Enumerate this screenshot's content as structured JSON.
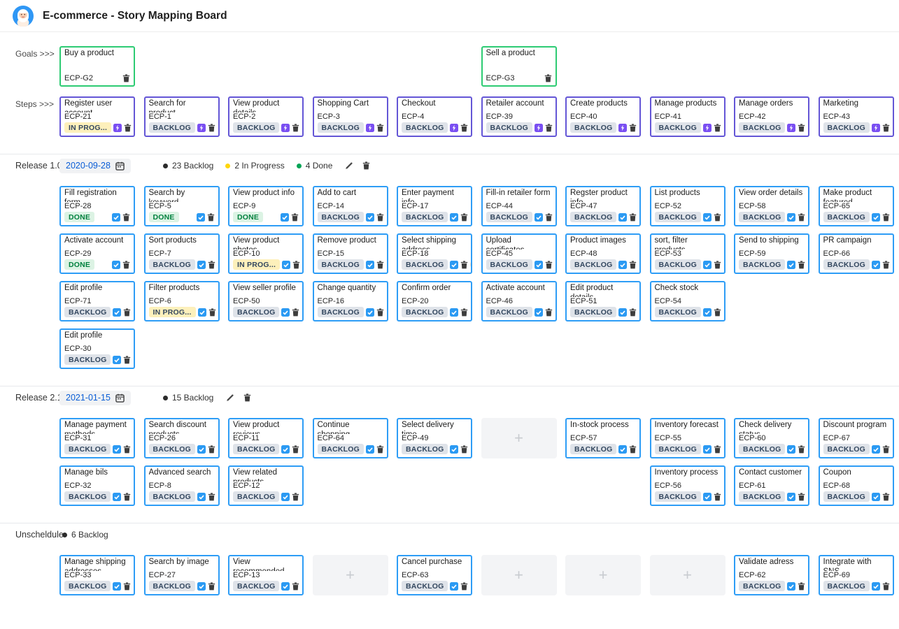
{
  "header": {
    "title": "E-commerce - Story Mapping Board"
  },
  "row_labels": {
    "goals": "Goals >>>",
    "steps": "Steps >>>"
  },
  "ui": {
    "placeholder_plus": "+"
  },
  "colors": {
    "goal_border": "#2dcb73",
    "step_border": "#6456d6",
    "story_border": "#2e9df6",
    "step_icon": "#7a4ff2",
    "story_icon": "#2b9af3",
    "badge_backlog_bg": "#dfe3e9",
    "badge_backlog_text": "#33475f",
    "badge_done_bg": "#dcf3e4",
    "badge_done_text": "#00813e",
    "badge_inprog_bg": "#fdf0bb",
    "badge_inprog_text": "#33475f",
    "dot_backlog": "#2b2b2b",
    "dot_inprog": "#ffd60a",
    "dot_done": "#00a455",
    "date_bg": "#f1f2f4",
    "date_text": "#0a5dd6"
  },
  "goals": [
    {
      "col": 0,
      "title": "Buy a product",
      "key": "ECP-G2"
    },
    {
      "col": 5,
      "title": "Sell a product",
      "key": "ECP-G3"
    }
  ],
  "steps": [
    {
      "col": 0,
      "title": "Register user account",
      "key": "ECP-21",
      "status": "inprog",
      "badge": "IN PROG...",
      "avatar": true
    },
    {
      "col": 1,
      "title": "Search for product",
      "key": "ECP-1",
      "status": "backlog",
      "badge": "BACKLOG"
    },
    {
      "col": 2,
      "title": "View product details",
      "key": "ECP-2",
      "status": "backlog",
      "badge": "BACKLOG"
    },
    {
      "col": 3,
      "title": "Shopping Cart",
      "key": "ECP-3",
      "status": "backlog",
      "badge": "BACKLOG"
    },
    {
      "col": 4,
      "title": "Checkout",
      "key": "ECP-4",
      "status": "backlog",
      "badge": "BACKLOG"
    },
    {
      "col": 5,
      "title": "Retailer account",
      "key": "ECP-39",
      "status": "backlog",
      "badge": "BACKLOG"
    },
    {
      "col": 6,
      "title": "Create products",
      "key": "ECP-40",
      "status": "backlog",
      "badge": "BACKLOG"
    },
    {
      "col": 7,
      "title": "Manage products",
      "key": "ECP-41",
      "status": "backlog",
      "badge": "BACKLOG"
    },
    {
      "col": 8,
      "title": "Manage orders",
      "key": "ECP-42",
      "status": "backlog",
      "badge": "BACKLOG"
    },
    {
      "col": 9,
      "title": "Marketing",
      "key": "ECP-43",
      "status": "backlog",
      "badge": "BACKLOG"
    }
  ],
  "sections": [
    {
      "label": "Release 1.0",
      "date": "2020-09-28",
      "editable": true,
      "counts": [
        {
          "status": "backlog",
          "label": "23 Backlog"
        },
        {
          "status": "inprog",
          "label": "2 In Progress"
        },
        {
          "status": "done",
          "label": "4 Done"
        }
      ],
      "rows": [
        [
          {
            "col": 0,
            "title": "Fill registration form",
            "key": "ECP-28",
            "status": "done",
            "badge": "DONE"
          },
          {
            "col": 1,
            "title": "Search by keyword",
            "key": "ECP-5",
            "status": "done",
            "badge": "DONE"
          },
          {
            "col": 2,
            "title": "View product info",
            "key": "ECP-9",
            "status": "done",
            "badge": "DONE"
          },
          {
            "col": 3,
            "title": "Add to cart",
            "key": "ECP-14",
            "status": "backlog",
            "badge": "BACKLOG"
          },
          {
            "col": 4,
            "title": "Enter payment info",
            "key": "ECP-17",
            "status": "backlog",
            "badge": "BACKLOG"
          },
          {
            "col": 5,
            "title": "Fill-in retailer form",
            "key": "ECP-44",
            "status": "backlog",
            "badge": "BACKLOG"
          },
          {
            "col": 6,
            "title": "Regster product info",
            "key": "ECP-47",
            "status": "backlog",
            "badge": "BACKLOG"
          },
          {
            "col": 7,
            "title": "List products",
            "key": "ECP-52",
            "status": "backlog",
            "badge": "BACKLOG"
          },
          {
            "col": 8,
            "title": "View order details",
            "key": "ECP-58",
            "status": "backlog",
            "badge": "BACKLOG"
          },
          {
            "col": 9,
            "title": "Make product featured",
            "key": "ECP-65",
            "status": "backlog",
            "badge": "BACKLOG"
          }
        ],
        [
          {
            "col": 0,
            "title": "Activate account",
            "key": "ECP-29",
            "status": "done",
            "badge": "DONE"
          },
          {
            "col": 1,
            "title": "Sort products",
            "key": "ECP-7",
            "status": "backlog",
            "badge": "BACKLOG"
          },
          {
            "col": 2,
            "title": "View product photos",
            "key": "ECP-10",
            "status": "inprog",
            "badge": "IN PROG..."
          },
          {
            "col": 3,
            "title": "Remove product",
            "key": "ECP-15",
            "status": "backlog",
            "badge": "BACKLOG"
          },
          {
            "col": 4,
            "title": "Select shipping address",
            "key": "ECP-18",
            "status": "backlog",
            "badge": "BACKLOG",
            "avatar": true
          },
          {
            "col": 5,
            "title": "Upload certificates",
            "key": "ECP-45",
            "status": "backlog",
            "badge": "BACKLOG"
          },
          {
            "col": 6,
            "title": "Product images",
            "key": "ECP-48",
            "status": "backlog",
            "badge": "BACKLOG"
          },
          {
            "col": 7,
            "title": "sort, filter products",
            "key": "ECP-53",
            "status": "backlog",
            "badge": "BACKLOG"
          },
          {
            "col": 8,
            "title": "Send to shipping",
            "key": "ECP-59",
            "status": "backlog",
            "badge": "BACKLOG"
          },
          {
            "col": 9,
            "title": "PR campaign",
            "key": "ECP-66",
            "status": "backlog",
            "badge": "BACKLOG"
          }
        ],
        [
          {
            "col": 0,
            "title": "Edit profile",
            "key": "ECP-71",
            "status": "backlog",
            "badge": "BACKLOG"
          },
          {
            "col": 1,
            "title": "Filter products",
            "key": "ECP-6",
            "status": "inprog",
            "badge": "IN PROG..."
          },
          {
            "col": 2,
            "title": "View seller profile",
            "key": "ECP-50",
            "status": "backlog",
            "badge": "BACKLOG"
          },
          {
            "col": 3,
            "title": "Change quantity",
            "key": "ECP-16",
            "status": "backlog",
            "badge": "BACKLOG"
          },
          {
            "col": 4,
            "title": "Confirm order",
            "key": "ECP-20",
            "status": "backlog",
            "badge": "BACKLOG"
          },
          {
            "col": 5,
            "title": "Activate account",
            "key": "ECP-46",
            "status": "backlog",
            "badge": "BACKLOG"
          },
          {
            "col": 6,
            "title": "Edit product details",
            "key": "ECP-51",
            "status": "backlog",
            "badge": "BACKLOG"
          },
          {
            "col": 7,
            "title": "Check stock",
            "key": "ECP-54",
            "status": "backlog",
            "badge": "BACKLOG"
          }
        ],
        [
          {
            "col": 0,
            "title": "Edit profile",
            "key": "ECP-30",
            "status": "backlog",
            "badge": "BACKLOG"
          }
        ]
      ]
    },
    {
      "label": "Release 2.1",
      "date": "2021-01-15",
      "editable": true,
      "counts": [
        {
          "status": "backlog",
          "label": "15 Backlog"
        }
      ],
      "rows": [
        [
          {
            "col": 0,
            "title": "Manage payment methods",
            "key": "ECP-31",
            "status": "backlog",
            "badge": "BACKLOG"
          },
          {
            "col": 1,
            "title": "Search discount products",
            "key": "ECP-26",
            "status": "backlog",
            "badge": "BACKLOG"
          },
          {
            "col": 2,
            "title": "View product reviews",
            "key": "ECP-11",
            "status": "backlog",
            "badge": "BACKLOG"
          },
          {
            "col": 3,
            "title": "Continue shopping",
            "key": "ECP-64",
            "status": "backlog",
            "badge": "BACKLOG"
          },
          {
            "col": 4,
            "title": "Select delivery time",
            "key": "ECP-49",
            "status": "backlog",
            "badge": "BACKLOG"
          },
          {
            "col": 5,
            "type": "placeholder"
          },
          {
            "col": 6,
            "title": "In-stock process",
            "key": "ECP-57",
            "status": "backlog",
            "badge": "BACKLOG"
          },
          {
            "col": 7,
            "title": "Inventory forecast",
            "key": "ECP-55",
            "status": "backlog",
            "badge": "BACKLOG"
          },
          {
            "col": 8,
            "title": "Check delivery status",
            "key": "ECP-60",
            "status": "backlog",
            "badge": "BACKLOG"
          },
          {
            "col": 9,
            "title": "Discount program",
            "key": "ECP-67",
            "status": "backlog",
            "badge": "BACKLOG"
          }
        ],
        [
          {
            "col": 0,
            "title": "Manage bils",
            "key": "ECP-32",
            "status": "backlog",
            "badge": "BACKLOG"
          },
          {
            "col": 1,
            "title": "Advanced search",
            "key": "ECP-8",
            "status": "backlog",
            "badge": "BACKLOG"
          },
          {
            "col": 2,
            "title": "View related products",
            "key": "ECP-12",
            "status": "backlog",
            "badge": "BACKLOG"
          },
          {
            "col": 7,
            "title": "Inventory process",
            "key": "ECP-56",
            "status": "backlog",
            "badge": "BACKLOG"
          },
          {
            "col": 8,
            "title": "Contact customer",
            "key": "ECP-61",
            "status": "backlog",
            "badge": "BACKLOG"
          },
          {
            "col": 9,
            "title": "Coupon",
            "key": "ECP-68",
            "status": "backlog",
            "badge": "BACKLOG"
          }
        ]
      ]
    },
    {
      "label": "Unscheldule",
      "editable": false,
      "counts": [
        {
          "status": "backlog",
          "label": "6 Backlog"
        }
      ],
      "rows": [
        [
          {
            "col": 0,
            "title": "Manage shipping addresses",
            "key": "ECP-33",
            "status": "backlog",
            "badge": "BACKLOG"
          },
          {
            "col": 1,
            "title": "Search by image",
            "key": "ECP-27",
            "status": "backlog",
            "badge": "BACKLOG"
          },
          {
            "col": 2,
            "title": "View recommended products",
            "key": "ECP-13",
            "status": "backlog",
            "badge": "BACKLOG"
          },
          {
            "col": 3,
            "type": "placeholder"
          },
          {
            "col": 4,
            "title": "Cancel purchase",
            "key": "ECP-63",
            "status": "backlog",
            "badge": "BACKLOG"
          },
          {
            "col": 5,
            "type": "placeholder"
          },
          {
            "col": 6,
            "type": "placeholder"
          },
          {
            "col": 7,
            "type": "placeholder"
          },
          {
            "col": 8,
            "title": "Validate adress",
            "key": "ECP-62",
            "status": "backlog",
            "badge": "BACKLOG"
          },
          {
            "col": 9,
            "title": "Integrate with SNS",
            "key": "ECP-69",
            "status": "backlog",
            "badge": "BACKLOG"
          }
        ]
      ]
    }
  ]
}
